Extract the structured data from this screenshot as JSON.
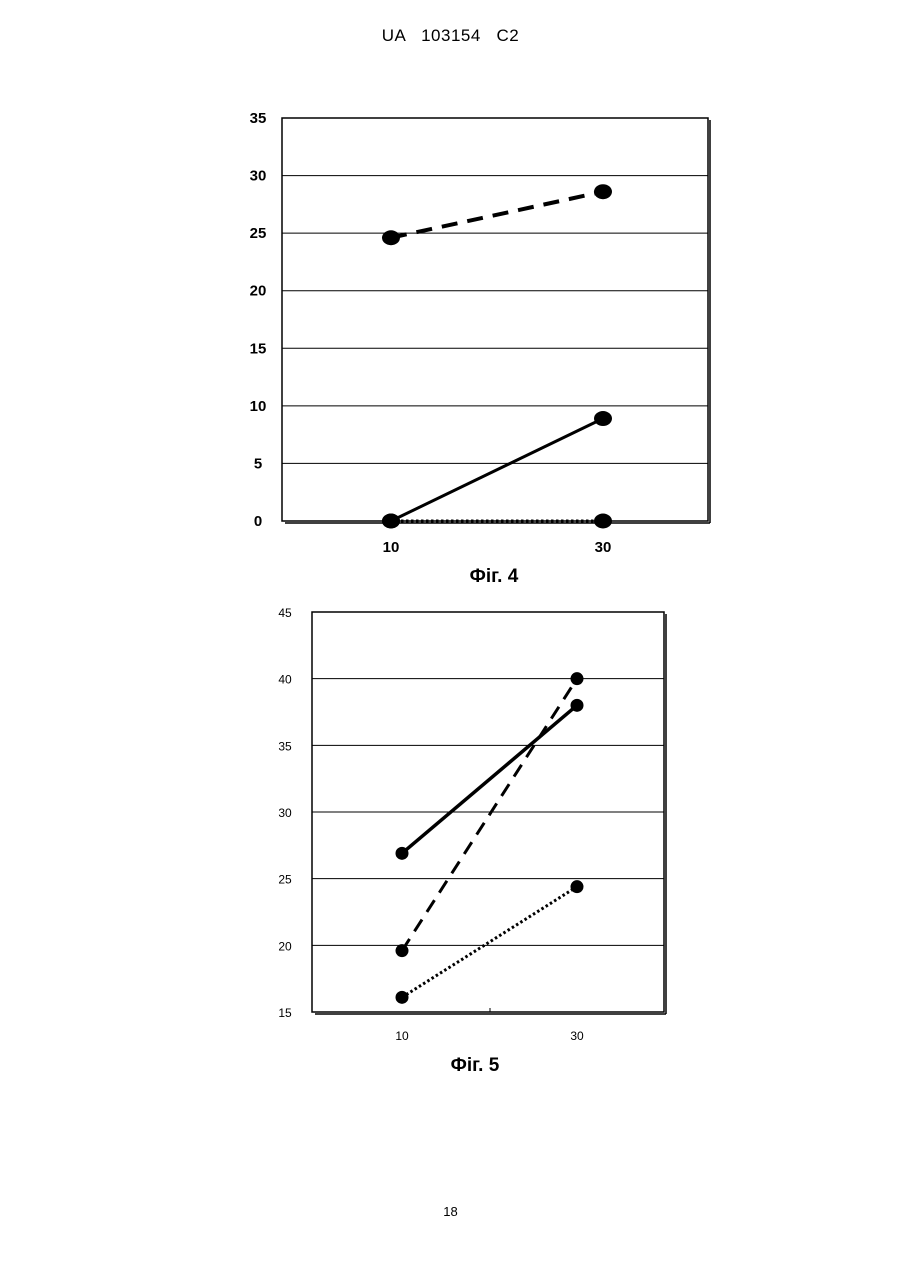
{
  "header": {
    "text": "UA   103154   C2"
  },
  "page_number": "18",
  "chart_data": [
    {
      "type": "line",
      "caption": "Фіг. 4",
      "x": [
        10,
        30
      ],
      "xticks": [
        "10",
        "30"
      ],
      "ylim": [
        0,
        35
      ],
      "yticks": [
        "0",
        "5",
        "10",
        "15",
        "20",
        "25",
        "30",
        "35"
      ],
      "grid": true,
      "series": [
        {
          "style": "dashed",
          "values": [
            24.6,
            28.6
          ]
        },
        {
          "style": "solid",
          "values": [
            0,
            8.9
          ]
        },
        {
          "style": "dotted",
          "values": [
            0,
            0
          ]
        }
      ]
    },
    {
      "type": "line",
      "caption": "Фіг. 5",
      "x": [
        10,
        30
      ],
      "xticks": [
        "10",
        "30"
      ],
      "ylim": [
        15,
        45
      ],
      "yticks": [
        "15",
        "20",
        "25",
        "30",
        "35",
        "40",
        "45"
      ],
      "grid": true,
      "series": [
        {
          "style": "solid",
          "values": [
            26.9,
            38.0
          ]
        },
        {
          "style": "dashed",
          "values": [
            19.6,
            40.0
          ]
        },
        {
          "style": "dotted",
          "values": [
            16.1,
            24.4
          ]
        }
      ]
    }
  ]
}
